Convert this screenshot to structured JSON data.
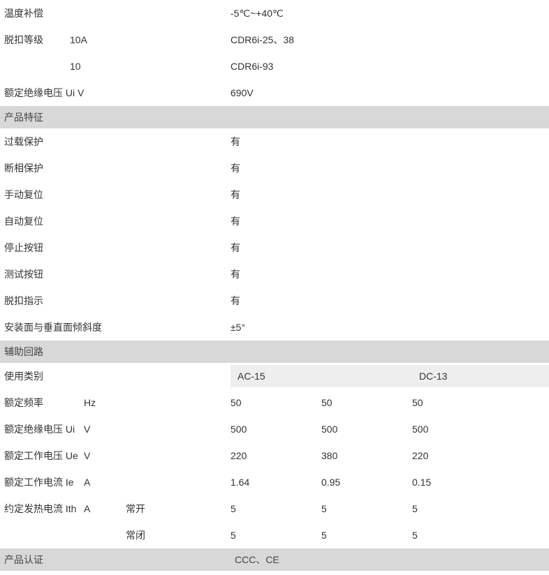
{
  "colors": {
    "section_bg": "#d8d8d8",
    "subheader_bg": "#eeeeee",
    "text": "#333333",
    "bg": "#ffffff"
  },
  "typography": {
    "fontsize": 14,
    "font_family": "Microsoft YaHei"
  },
  "top": {
    "rows": [
      {
        "label": "温度补偿",
        "sub": "",
        "value": "-5℃~+40℃"
      },
      {
        "label": "脱扣等级",
        "sub": "10A",
        "value": "CDR6i-25、38"
      },
      {
        "label": "",
        "sub": "10",
        "value": "CDR6i-93"
      },
      {
        "label": "额定绝缘电压 Ui V",
        "sub": "",
        "value": "690V"
      }
    ]
  },
  "features": {
    "title": "产品特征",
    "rows": [
      {
        "label": "过载保护",
        "value": "有"
      },
      {
        "label": "断相保护",
        "value": "有"
      },
      {
        "label": "手动复位",
        "value": "有"
      },
      {
        "label": "自动复位",
        "value": "有"
      },
      {
        "label": "停止按钮",
        "value": "有"
      },
      {
        "label": "测试按钮",
        "value": "有"
      },
      {
        "label": "脱扣指示",
        "value": "有"
      },
      {
        "label": "安装面与垂直面倾斜度",
        "value": "±5°"
      }
    ]
  },
  "aux": {
    "title": "辅助回路",
    "category_label": "使用类别",
    "header_ac": "AC-15",
    "header_dc": "DC-13",
    "rows": [
      {
        "label": "额定频率",
        "sym": "",
        "unit": "Hz",
        "sub": "",
        "v1": "50",
        "v2": "50",
        "v3": "50"
      },
      {
        "label": "额定绝缘电压",
        "sym": "Ui",
        "unit": "V",
        "sub": "",
        "v1": "500",
        "v2": "500",
        "v3": "500"
      },
      {
        "label": "额定工作电压",
        "sym": "Ue",
        "unit": "V",
        "sub": "",
        "v1": "220",
        "v2": "380",
        "v3": "220"
      },
      {
        "label": "额定工作电流",
        "sym": "Ie",
        "unit": "A",
        "sub": "",
        "v1": "1.64",
        "v2": "0.95",
        "v3": "0.15"
      },
      {
        "label": "约定发热电流",
        "sym": "Ith",
        "unit": "A",
        "sub": "常开",
        "v1": "5",
        "v2": "5",
        "v3": "5"
      },
      {
        "label": "",
        "sym": "",
        "unit": "",
        "sub": "常闭",
        "v1": "5",
        "v2": "5",
        "v3": "5"
      }
    ]
  },
  "cert": {
    "label": "产品认证",
    "value": "CCC、CE"
  }
}
